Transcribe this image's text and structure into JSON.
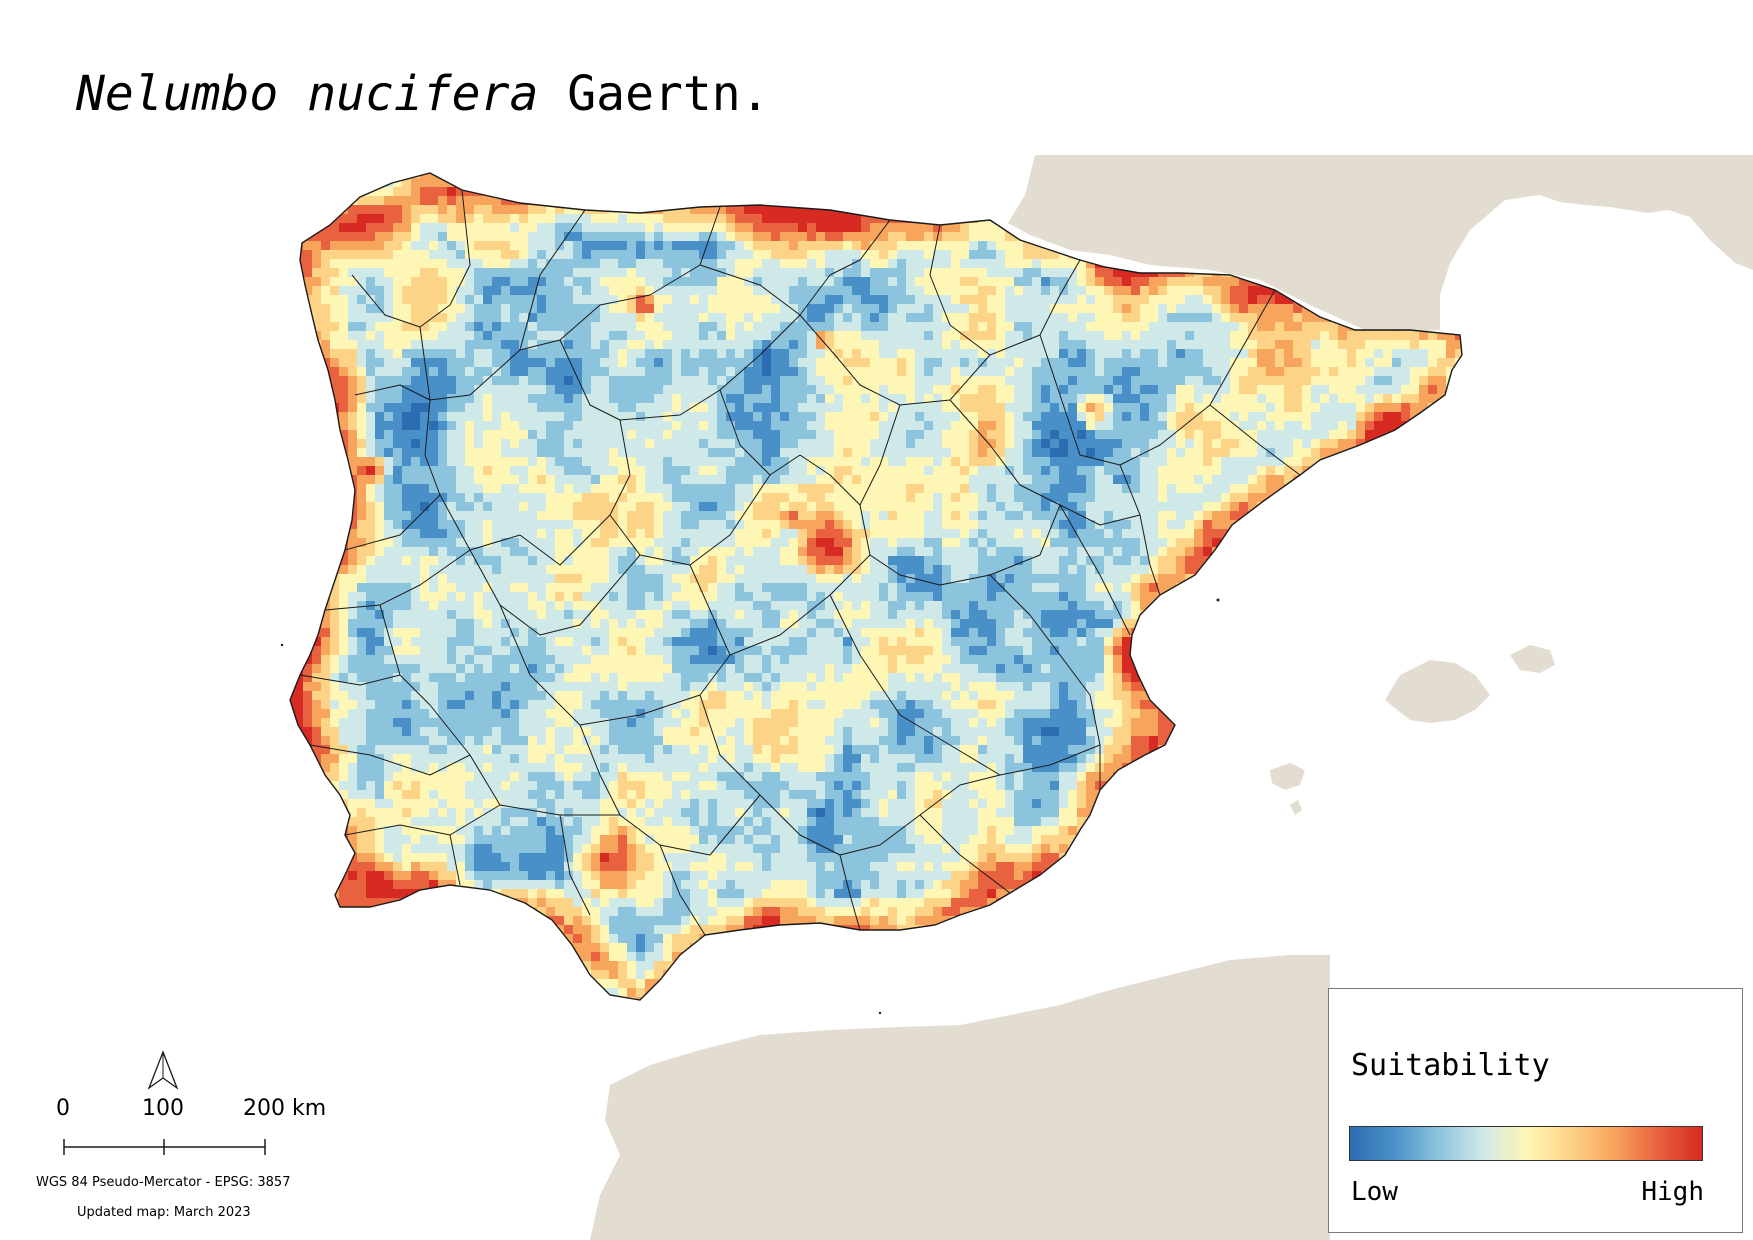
{
  "map": {
    "title_species": "Nelumbo nucifera",
    "title_author": "Gaertn.",
    "background_color": "#ffffff",
    "land_color": "#e2ddd0",
    "boundary_color": "#1a1a1a"
  },
  "legend": {
    "title": "Suitability",
    "low_label": "Low",
    "high_label": "High",
    "ramp_colors": [
      "#2c6db2",
      "#4a90c8",
      "#8cc3dd",
      "#cfe8e8",
      "#fdf6b5",
      "#fdd487",
      "#f7a45c",
      "#e8623f",
      "#d62a22"
    ]
  },
  "scale_bar": {
    "labels": [
      "0",
      "100",
      "200 km"
    ]
  },
  "north_arrow": {
    "icon": "north-arrow-icon"
  },
  "footer": {
    "crs": "WGS 84 Pseudo-Mercator  - EPSG: 3857",
    "updated": "Updated map: March 2023"
  }
}
